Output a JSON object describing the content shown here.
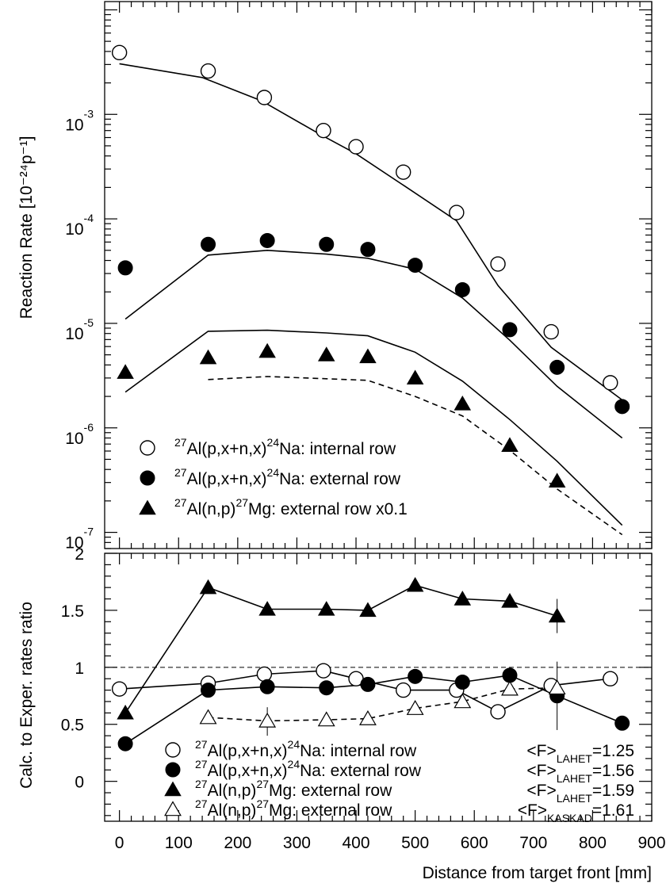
{
  "chart_data": [
    {
      "type": "line",
      "panel": "top",
      "y_scale": "log",
      "ylim": [
        7e-08,
        0.012
      ],
      "xlim": [
        -25,
        900
      ],
      "ylabel": "Reaction Rate [10⁻²⁴p⁻¹]",
      "y_ticks": [
        {
          "value": 1e-07,
          "base": "10",
          "exp": "-7"
        },
        {
          "value": 1e-06,
          "base": "10",
          "exp": "-6"
        },
        {
          "value": 1e-05,
          "base": "10",
          "exp": "-5"
        },
        {
          "value": 0.0001,
          "base": "10",
          "exp": "-4"
        },
        {
          "value": 0.001,
          "base": "10",
          "exp": "-3"
        }
      ],
      "legend_placement": "bottom-left",
      "legend": [
        {
          "marker": "open-circle",
          "pre": "27",
          "a": "Al(p,x+n,x)",
          "mid": "24",
          "b": "Na: internal row"
        },
        {
          "marker": "filled-circle",
          "pre": "27",
          "a": "Al(p,x+n,x)",
          "mid": "24",
          "b": "Na: external row"
        },
        {
          "marker": "filled-triangle",
          "pre": "27",
          "a": "Al(n,p)",
          "mid": "27",
          "b": "Mg: external row x0.1"
        }
      ],
      "series": [
        {
          "marker": "open-circle",
          "kind": "points",
          "x": [
            0,
            150,
            245,
            345,
            400,
            480,
            570,
            640,
            730,
            830
          ],
          "y": [
            0.0039,
            0.0026,
            0.00145,
            0.0007,
            0.00049,
            0.00028,
            0.000115,
            3.7e-05,
            8.3e-06,
            2.7e-06
          ]
        },
        {
          "marker": "filled-circle",
          "kind": "points",
          "x": [
            10,
            150,
            250,
            350,
            420,
            500,
            580,
            660,
            740,
            850
          ],
          "y": [
            3.4e-05,
            5.7e-05,
            6.2e-05,
            5.7e-05,
            5.1e-05,
            3.6e-05,
            2.1e-05,
            8.7e-06,
            3.8e-06,
            1.6e-06
          ]
        },
        {
          "marker": "filled-triangle",
          "kind": "points",
          "x": [
            10,
            150,
            250,
            350,
            420,
            500,
            580,
            660,
            740
          ],
          "y": [
            3.4e-06,
            4.7e-06,
            5.4e-06,
            5e-06,
            4.8e-06,
            3e-06,
            1.7e-06,
            6.8e-07,
            3.1e-07
          ]
        },
        {
          "style": "solid",
          "kind": "curve",
          "x": [
            0,
            140,
            240,
            340,
            400,
            480,
            570,
            640,
            730,
            850
          ],
          "y": [
            0.00305,
            0.00225,
            0.00135,
            0.00064,
            0.00042,
            0.00021,
            9.6e-05,
            2.3e-05,
            5.9e-06,
            1.85e-06
          ]
        },
        {
          "style": "solid",
          "kind": "curve",
          "x": [
            10,
            150,
            250,
            350,
            420,
            500,
            580,
            660,
            740,
            850
          ],
          "y": [
            1.1e-05,
            4.5e-05,
            5e-05,
            4.6e-05,
            4.2e-05,
            3.3e-05,
            1.75e-05,
            6.9e-06,
            2.5e-06,
            8e-07
          ]
        },
        {
          "style": "solid",
          "kind": "curve",
          "x": [
            10,
            150,
            250,
            350,
            420,
            500,
            580,
            660,
            740,
            850
          ],
          "y": [
            2.2e-06,
            8.4e-06,
            8.6e-06,
            8.1e-06,
            7.6e-06,
            5.3e-06,
            2.8e-06,
            1.2e-06,
            4.8e-07,
            1.17e-07
          ]
        },
        {
          "style": "dashed",
          "kind": "curve",
          "x": [
            150,
            250,
            350,
            420,
            500,
            580,
            660,
            740,
            850
          ],
          "y": [
            2.9e-06,
            3.1e-06,
            2.95e-06,
            2.85e-06,
            2e-06,
            1.3e-06,
            6.1e-07,
            2.6e-07,
            9.5e-08
          ]
        }
      ]
    },
    {
      "type": "line",
      "panel": "bottom",
      "xlabel": "Distance from target front [mm]",
      "ylabel": "Calc. to Exper. rates ratio",
      "xlim": [
        -25,
        900
      ],
      "ylim": [
        -0.35,
        2.0
      ],
      "x_ticks": [
        0,
        100,
        200,
        300,
        400,
        500,
        600,
        700,
        800,
        900
      ],
      "x_tick_labels": [
        "0",
        "100",
        "200",
        "300",
        "400",
        "500",
        "600",
        "700",
        "800",
        "900"
      ],
      "y_ticks": [
        0,
        0.5,
        1,
        1.5,
        2
      ],
      "y_tick_labels": [
        "0",
        "0.5",
        "1",
        "1.5",
        "2"
      ],
      "reference_line": 1,
      "legend_placement": "bottom",
      "legend": [
        {
          "marker": "open-circle",
          "pre": "27",
          "a": "Al(p,x+n,x)",
          "mid": "24",
          "b": "Na: internal row",
          "f_lead": "<F>",
          "f_sub": "LAHET",
          "f_val": "=1.25"
        },
        {
          "marker": "filled-circle",
          "pre": "27",
          "a": "Al(p,x+n,x)",
          "mid": "24",
          "b": "Na: external row",
          "f_lead": "<F>",
          "f_sub": "LAHET",
          "f_val": "=1.56"
        },
        {
          "marker": "filled-triangle",
          "pre": "27",
          "a": "Al(n,p)",
          "mid": "27",
          "b": "Mg: external row",
          "f_lead": "<F>",
          "f_sub": "LAHET",
          "f_val": "=1.59"
        },
        {
          "marker": "open-triangle",
          "pre": "27",
          "a": "Al(n,p)",
          "mid": "27",
          "b": "Mg: external row",
          "f_lead": "<F>",
          "f_sub": "KASKAD",
          "f_val": "=1.61"
        }
      ],
      "series": [
        {
          "marker": "open-circle",
          "style": "solid",
          "x": [
            0,
            150,
            245,
            345,
            400,
            480,
            570,
            640,
            730,
            830
          ],
          "y": [
            0.81,
            0.86,
            0.94,
            0.97,
            0.9,
            0.8,
            0.8,
            0.61,
            0.84,
            0.9
          ]
        },
        {
          "marker": "filled-circle",
          "style": "solid",
          "x": [
            10,
            150,
            250,
            350,
            420,
            500,
            580,
            660,
            740,
            850
          ],
          "y": [
            0.33,
            0.8,
            0.83,
            0.82,
            0.85,
            0.92,
            0.87,
            0.93,
            0.75,
            0.51
          ],
          "error_x": 740,
          "error_y": [
            0.45,
            1.05
          ]
        },
        {
          "marker": "filled-triangle",
          "style": "solid",
          "x": [
            10,
            150,
            250,
            350,
            420,
            500,
            580,
            660,
            740
          ],
          "y": [
            0.6,
            1.7,
            1.51,
            1.51,
            1.5,
            1.72,
            1.6,
            1.58,
            1.45
          ],
          "error_x": 740,
          "error_y": [
            1.3,
            1.6
          ]
        },
        {
          "marker": "open-triangle",
          "style": "dashed",
          "x": [
            150,
            250,
            350,
            420,
            500,
            580,
            660,
            740
          ],
          "y": [
            0.56,
            0.53,
            0.54,
            0.55,
            0.64,
            0.7,
            0.81,
            0.82
          ],
          "error_x": 250,
          "error_y": [
            0.4,
            0.65
          ]
        }
      ]
    }
  ]
}
